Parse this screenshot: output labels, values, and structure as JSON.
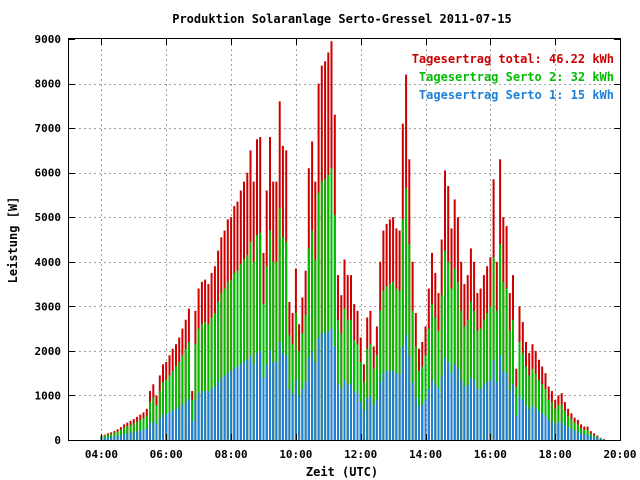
{
  "chart_data": {
    "type": "bar",
    "title": "Produktion Solaranlage Serto-Gressel 2011-07-15",
    "xlabel": "Zeit (UTC)",
    "ylabel": "Leistung [W]",
    "xlim": [
      3,
      20
    ],
    "ylim": [
      0,
      9000
    ],
    "grid": true,
    "legend_position": "top-right",
    "x_ticks": [
      {
        "value": 4,
        "label": "04:00"
      },
      {
        "value": 6,
        "label": "06:00"
      },
      {
        "value": 8,
        "label": "08:00"
      },
      {
        "value": 10,
        "label": "10:00"
      },
      {
        "value": 12,
        "label": "12:00"
      },
      {
        "value": 14,
        "label": "14:00"
      },
      {
        "value": 16,
        "label": "16:00"
      },
      {
        "value": 18,
        "label": "18:00"
      },
      {
        "value": 20,
        "label": "20:00"
      }
    ],
    "y_ticks": [
      0,
      1000,
      2000,
      3000,
      4000,
      5000,
      6000,
      7000,
      8000,
      9000
    ],
    "series": [
      {
        "name": "Tagesertrag total: 46.22 kWh",
        "color": "#cc0000"
      },
      {
        "name": "Tagesertrag Serto 2: 32 kWh",
        "color": "#00bb00"
      },
      {
        "name": "Tagesertrag Serto 1: 15 kWh",
        "color": "#1e7fd6"
      }
    ],
    "total_hours": [
      4.0,
      4.1,
      4.2,
      4.3,
      4.4,
      4.5,
      4.6,
      4.7,
      4.8,
      4.9,
      5.0,
      5.1,
      5.2,
      5.3,
      5.4,
      5.5,
      5.6,
      5.7,
      5.8,
      5.9,
      6.0,
      6.1,
      6.2,
      6.3,
      6.4,
      6.5,
      6.6,
      6.7,
      6.8,
      6.9,
      7.0,
      7.1,
      7.2,
      7.3,
      7.4,
      7.5,
      7.6,
      7.7,
      7.8,
      7.9,
      8.0,
      8.1,
      8.2,
      8.3,
      8.4,
      8.5,
      8.6,
      8.7,
      8.8,
      8.9,
      9.0,
      9.1,
      9.2,
      9.3,
      9.4,
      9.5,
      9.6,
      9.7,
      9.8,
      9.9,
      10.0,
      10.1,
      10.2,
      10.3,
      10.4,
      10.5,
      10.6,
      10.7,
      10.8,
      10.9,
      11.0,
      11.1,
      11.2,
      11.3,
      11.4,
      11.5,
      11.6,
      11.7,
      11.8,
      11.9,
      12.0,
      12.1,
      12.2,
      12.3,
      12.4,
      12.5,
      12.6,
      12.7,
      12.8,
      12.9,
      13.0,
      13.1,
      13.2,
      13.3,
      13.4,
      13.5,
      13.6,
      13.7,
      13.8,
      13.9,
      14.0,
      14.1,
      14.2,
      14.3,
      14.4,
      14.5,
      14.6,
      14.7,
      14.8,
      14.9,
      15.0,
      15.1,
      15.2,
      15.3,
      15.4,
      15.5,
      15.6,
      15.7,
      15.8,
      15.9,
      16.0,
      16.1,
      16.2,
      16.3,
      16.4,
      16.5,
      16.6,
      16.7,
      16.8,
      16.9,
      17.0,
      17.1,
      17.2,
      17.3,
      17.4,
      17.5,
      17.6,
      17.7,
      17.8,
      17.9,
      18.0,
      18.1,
      18.2,
      18.3,
      18.4,
      18.5,
      18.6,
      18.7,
      18.8,
      18.9,
      19.0,
      19.1,
      19.2,
      19.3,
      19.4,
      19.5
    ],
    "total_values": [
      100,
      120,
      150,
      170,
      200,
      240,
      290,
      350,
      390,
      430,
      470,
      520,
      570,
      620,
      700,
      1100,
      1250,
      1000,
      1450,
      1700,
      1750,
      1900,
      2050,
      2150,
      2300,
      2500,
      2700,
      2950,
      1100,
      2900,
      3400,
      3550,
      3600,
      3500,
      3750,
      3900,
      4250,
      4550,
      4700,
      4950,
      5000,
      5250,
      5350,
      5600,
      5800,
      6000,
      6500,
      5800,
      6750,
      6800,
      4200,
      5600,
      6800,
      5800,
      5800,
      7600,
      6600,
      6500,
      3100,
      2850,
      3850,
      2600,
      3200,
      3800,
      6100,
      6700,
      5800,
      8000,
      8400,
      8500,
      8700,
      8950,
      7300,
      3700,
      3250,
      4050,
      3700,
      3700,
      3050,
      2900,
      2300,
      1700,
      2750,
      2900,
      2100,
      2550,
      4000,
      4700,
      4850,
      4950,
      5000,
      4750,
      4700,
      7100,
      8200,
      6300,
      4000,
      2850,
      2050,
      2200,
      2550,
      3400,
      4200,
      3750,
      3300,
      4500,
      6050,
      5700,
      4750,
      5400,
      5000,
      4000,
      3500,
      3700,
      4300,
      4000,
      3300,
      3400,
      3700,
      3900,
      4100,
      5850,
      4000,
      6300,
      5000,
      4800,
      3300,
      3700,
      1600,
      3000,
      2650,
      2200,
      1950,
      2150,
      2000,
      1800,
      1650,
      1500,
      1200,
      1100,
      900,
      1000,
      1050,
      850,
      700,
      600,
      500,
      450,
      350,
      300,
      300,
      200,
      150,
      100,
      50,
      20
    ],
    "serto2_values": [
      80,
      100,
      120,
      140,
      160,
      190,
      230,
      280,
      310,
      340,
      370,
      410,
      450,
      490,
      550,
      850,
      950,
      780,
      1100,
      1300,
      1350,
      1450,
      1550,
      1650,
      1750,
      1900,
      2050,
      2200,
      900,
      2150,
      2500,
      2600,
      2650,
      2600,
      2750,
      2850,
      3100,
      3300,
      3400,
      3550,
      3600,
      3750,
      3800,
      3950,
      4050,
      4150,
      4450,
      4000,
      4600,
      4650,
      3050,
      3900,
      4700,
      4000,
      4000,
      5200,
      4550,
      4450,
      2350,
      2150,
      2850,
      2000,
      2400,
      2800,
      4300,
      4700,
      4050,
      5550,
      5800,
      5850,
      5950,
      6100,
      5050,
      2700,
      2400,
      2950,
      2700,
      2700,
      2250,
      2150,
      1750,
      1300,
      2050,
      2150,
      1600,
      1900,
      2900,
      3350,
      3450,
      3500,
      3550,
      3400,
      3350,
      4950,
      5650,
      4400,
      2900,
      2100,
      1550,
      1650,
      1900,
      2500,
      3050,
      2750,
      2450,
      3250,
      4250,
      4000,
      3400,
      3850,
      3550,
      2900,
      2550,
      2700,
      3100,
      2900,
      2450,
      2500,
      2700,
      2850,
      3000,
      4100,
      2900,
      4400,
      3550,
      3400,
      2450,
      2700,
      1200,
      2200,
      1950,
      1650,
      1450,
      1600,
      1500,
      1350,
      1250,
      1150,
      900,
      850,
      700,
      780,
      800,
      650,
      540,
      470,
      390,
      350,
      270,
      230,
      230,
      150,
      110,
      80,
      40,
      15
    ],
    "serto1_values": [
      40,
      50,
      60,
      70,
      80,
      95,
      110,
      130,
      150,
      160,
      175,
      195,
      210,
      230,
      260,
      380,
      420,
      360,
      480,
      560,
      580,
      620,
      660,
      700,
      740,
      800,
      860,
      920,
      420,
      900,
      1050,
      1100,
      1100,
      1080,
      1150,
      1200,
      1300,
      1400,
      1450,
      1500,
      1550,
      1600,
      1650,
      1700,
      1750,
      1800,
      1900,
      1700,
      1950,
      2000,
      1400,
      1700,
      2000,
      1750,
      1750,
      2200,
      1950,
      1900,
      1150,
      1050,
      1350,
      1000,
      1150,
      1300,
      1850,
      2000,
      1750,
      2300,
      2400,
      2400,
      2450,
      2500,
      2100,
      1250,
      1150,
      1350,
      1250,
      1250,
      1100,
      1050,
      850,
      650,
      950,
      1000,
      780,
      900,
      1300,
      1500,
      1550,
      1550,
      1550,
      1500,
      1480,
      2100,
      2350,
      1900,
      1300,
      950,
      750,
      800,
      900,
      1150,
      1350,
      1250,
      1150,
      1450,
      1850,
      1750,
      1500,
      1700,
      1600,
      1350,
      1200,
      1250,
      1400,
      1350,
      1150,
      1150,
      1250,
      1300,
      1350,
      1800,
      1300,
      1900,
      1550,
      1500,
      1100,
      1250,
      550,
      1000,
      900,
      780,
      700,
      760,
      720,
      650,
      600,
      550,
      450,
      420,
      360,
      400,
      410,
      340,
      290,
      250,
      210,
      190,
      150,
      130,
      130,
      90,
      70,
      50,
      25,
      10
    ]
  }
}
